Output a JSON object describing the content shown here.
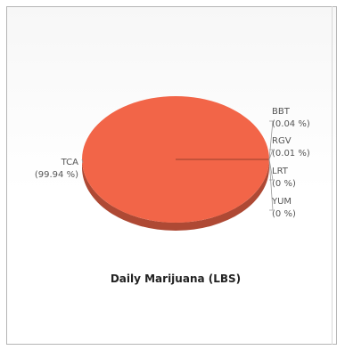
{
  "chart_data": {
    "type": "pie",
    "title": "Daily Marijuana (LBS)",
    "categories": [
      "TCA",
      "BBT",
      "RGV",
      "LRT",
      "YUM"
    ],
    "values": [
      99.94,
      0.04,
      0.01,
      0,
      0
    ],
    "value_labels": [
      "(99.94 %)",
      "(0.04 %)",
      "(0.01 %)",
      "(0 %)",
      "(0 %)"
    ],
    "colors": [
      "#f26548",
      "#b7d96b",
      "#6f9ed8",
      "#f5c84c",
      "#a47bc9"
    ],
    "style": "3d",
    "legend": "none"
  }
}
